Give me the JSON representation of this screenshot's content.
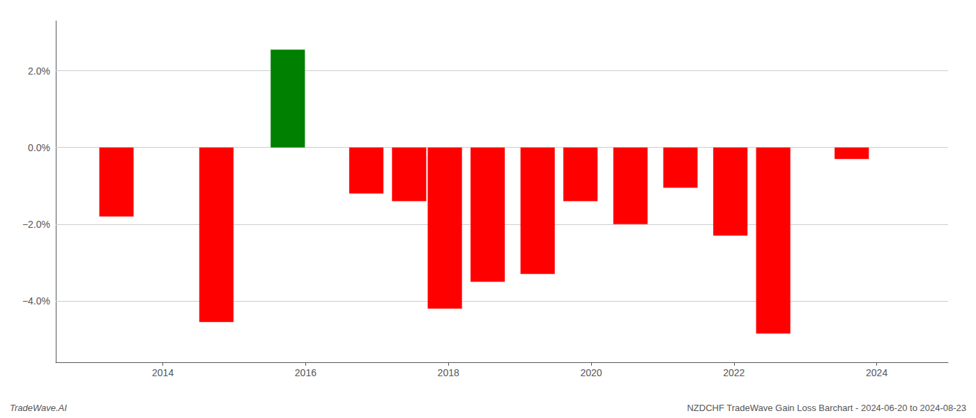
{
  "chart_data": {
    "type": "bar",
    "x": [
      2013.35,
      2014.75,
      2015.75,
      2016.85,
      2017.45,
      2017.95,
      2018.55,
      2019.25,
      2019.85,
      2020.55,
      2021.25,
      2021.95,
      2022.55,
      2023.65
    ],
    "values": [
      -1.8,
      -4.55,
      2.55,
      -1.2,
      -1.4,
      -4.2,
      -3.5,
      -3.3,
      -1.4,
      -2.0,
      -1.05,
      -2.3,
      -4.85,
      -0.3
    ],
    "colors": [
      "#ff0000",
      "#ff0000",
      "#008000",
      "#ff0000",
      "#ff0000",
      "#ff0000",
      "#ff0000",
      "#ff0000",
      "#ff0000",
      "#ff0000",
      "#ff0000",
      "#ff0000",
      "#ff0000",
      "#ff0000"
    ],
    "xlim": [
      2012.5,
      2025.0
    ],
    "xticks": [
      2014,
      2016,
      2018,
      2020,
      2022,
      2024
    ],
    "ylim": [
      -5.6,
      3.3
    ],
    "yticks": [
      {
        "value": -4.0,
        "label": "−4.0%"
      },
      {
        "value": -2.0,
        "label": "−2.0%"
      },
      {
        "value": 0.0,
        "label": "0.0%"
      },
      {
        "value": 2.0,
        "label": "2.0%"
      }
    ],
    "grid": true,
    "annotations": [
      "TradeWave.AI",
      "NZDCHF TradeWave Gain Loss Barchart - 2024-06-20 to 2024-08-23"
    ]
  }
}
